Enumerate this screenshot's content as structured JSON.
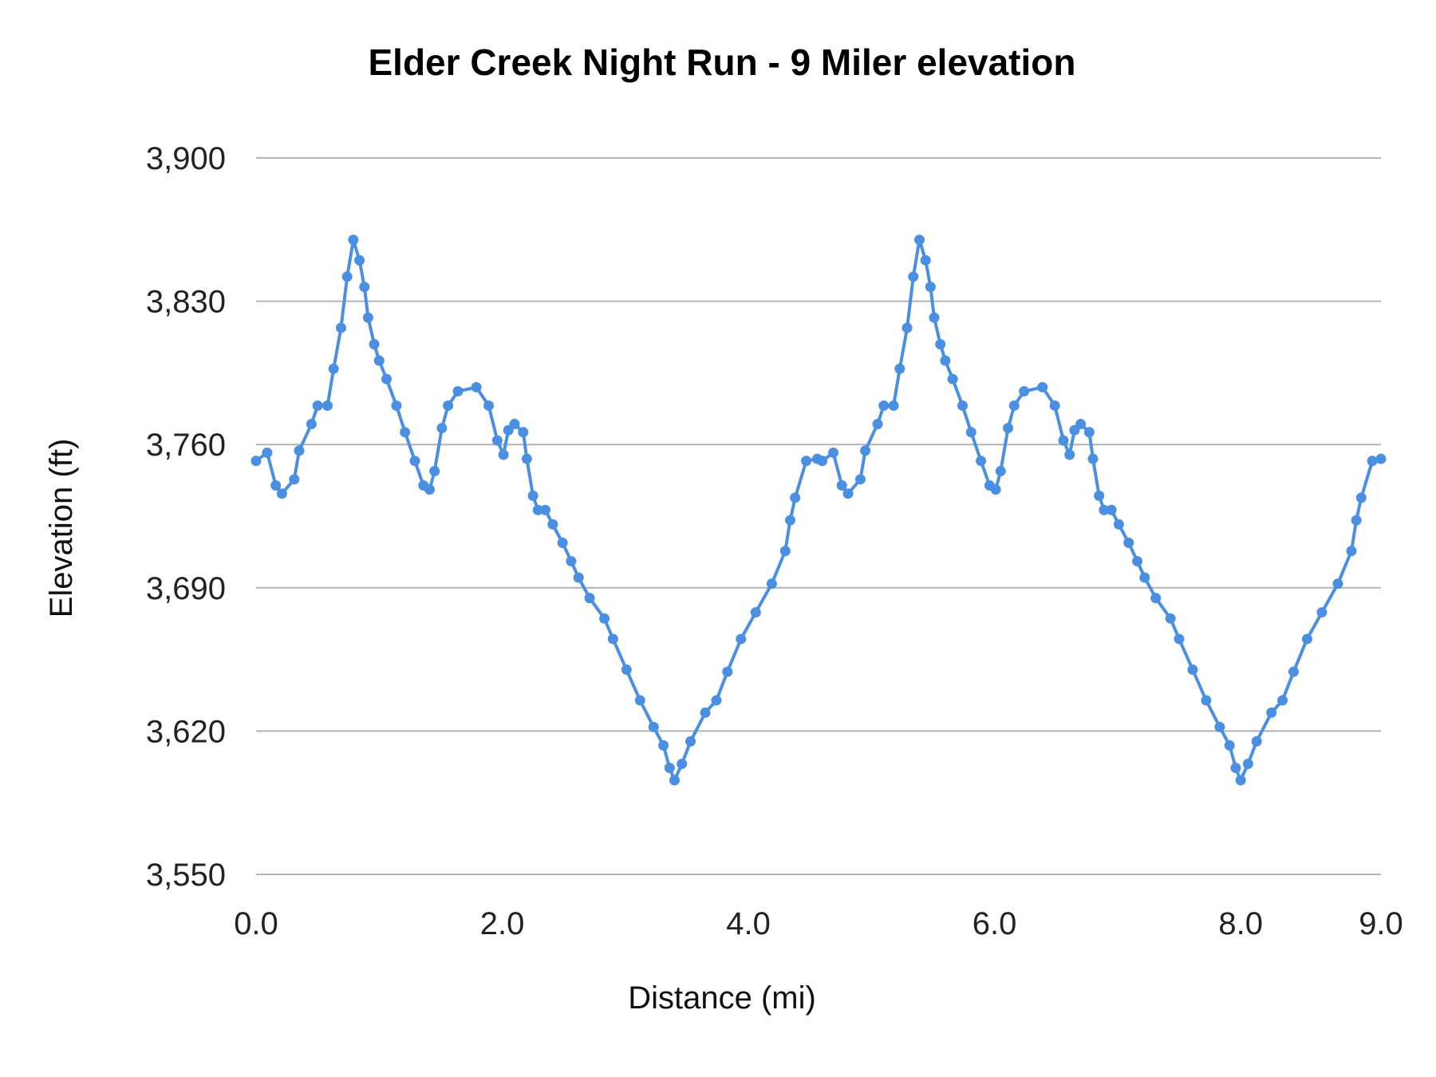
{
  "chart_data": {
    "type": "line",
    "title": "Elder Creek Night Run - 9 Miler elevation",
    "xlabel": "Distance (mi)",
    "ylabel": "Elevation (ft)",
    "xlim": [
      0,
      9.14
    ],
    "ylim": [
      3550,
      3900
    ],
    "xticks": [
      0,
      2,
      4,
      6,
      8,
      9
    ],
    "xtick_labels": [
      "0.0",
      "2.0",
      "4.0",
      "6.0",
      "8.0",
      "9.0"
    ],
    "yticks": [
      3550,
      3620,
      3690,
      3760,
      3830,
      3900
    ],
    "ytick_labels": [
      "3,550",
      "3,620",
      "3,690",
      "3,760",
      "3,830",
      "3,900"
    ],
    "grid": "horizontal",
    "legend": "none",
    "markers": true,
    "color": "#4a8fe2",
    "series": [
      {
        "x": [
          0,
          0.09,
          0.16,
          0.21,
          0.31,
          0.35,
          0.45,
          0.5,
          0.58,
          0.63,
          0.69,
          0.74,
          0.79,
          0.84,
          0.88,
          0.91,
          0.96,
          1.0,
          1.06,
          1.14,
          1.21,
          1.29,
          1.36,
          1.41,
          1.45,
          1.51,
          1.56,
          1.64,
          1.79,
          1.89,
          1.96,
          2.01,
          2.05,
          2.1,
          2.17,
          2.2,
          2.25,
          2.29,
          2.35,
          2.41,
          2.49,
          2.56,
          2.62,
          2.71,
          2.83,
          2.9,
          3.01,
          3.12,
          3.23,
          3.31,
          3.36,
          3.4,
          3.46,
          3.53,
          3.65,
          3.74,
          3.83,
          3.94,
          4.06,
          4.19,
          4.3,
          4.34,
          4.38,
          4.47,
          4.56,
          4.6,
          4.69,
          4.76,
          4.81,
          4.91,
          4.95,
          5.05,
          5.1,
          5.18,
          5.23,
          5.29,
          5.34,
          5.39,
          5.44,
          5.48,
          5.51,
          5.56,
          5.6,
          5.66,
          5.74,
          5.81,
          5.89,
          5.96,
          6.01,
          6.05,
          6.11,
          6.16,
          6.24,
          6.39,
          6.49,
          6.56,
          6.61,
          6.65,
          6.7,
          6.77,
          6.8,
          6.85,
          6.89,
          6.95,
          7.01,
          7.09,
          7.16,
          7.22,
          7.31,
          7.43,
          7.5,
          7.61,
          7.72,
          7.83,
          7.91,
          7.96,
          8.0,
          8.06,
          8.13,
          8.25,
          8.34,
          8.43,
          8.54,
          8.66,
          8.79,
          8.9,
          8.94,
          8.98,
          9.07,
          9.14
        ],
        "y": [
          3752,
          3756,
          3740,
          3736,
          3743,
          3757,
          3770,
          3779,
          3779,
          3797,
          3817,
          3842,
          3860,
          3850,
          3837,
          3822,
          3809,
          3801,
          3792,
          3779,
          3766,
          3752,
          3740,
          3738,
          3747,
          3768,
          3779,
          3786,
          3788,
          3779,
          3762,
          3755,
          3767,
          3770,
          3766,
          3753,
          3735,
          3728,
          3728,
          3721,
          3712,
          3703,
          3695,
          3685,
          3675,
          3665,
          3650,
          3635,
          3622,
          3613,
          3602,
          3596,
          3604,
          3615,
          3629,
          3635,
          3649,
          3665,
          3678,
          3692,
          3708,
          3723,
          3734,
          3752,
          3753,
          3752,
          3756,
          3740,
          3736,
          3743,
          3757,
          3770,
          3779,
          3779,
          3797,
          3817,
          3842,
          3860,
          3850,
          3837,
          3822,
          3809,
          3801,
          3792,
          3779,
          3766,
          3752,
          3740,
          3738,
          3747,
          3768,
          3779,
          3786,
          3788,
          3779,
          3762,
          3755,
          3767,
          3770,
          3766,
          3753,
          3735,
          3728,
          3728,
          3721,
          3712,
          3703,
          3695,
          3685,
          3675,
          3665,
          3650,
          3635,
          3622,
          3613,
          3602,
          3596,
          3604,
          3615,
          3629,
          3635,
          3649,
          3665,
          3678,
          3692,
          3708,
          3723,
          3734,
          3752,
          3753
        ]
      }
    ]
  }
}
